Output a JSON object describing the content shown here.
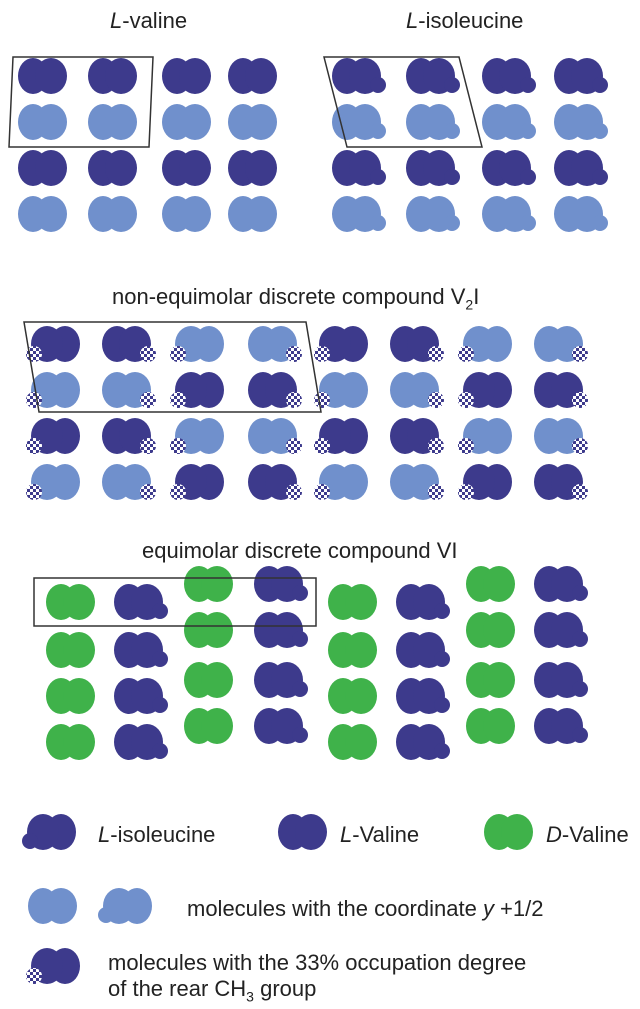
{
  "titles": {
    "valine_prefix": "L",
    "valine_rest": "-valine",
    "isoleucine_prefix": "L",
    "isoleucine_rest": "-isoleucine",
    "v2i_main": "non-equimolar discrete compound V",
    "v2i_sub": "2",
    "v2i_end": "I",
    "vi": "equimolar discrete compound VI"
  },
  "legend": {
    "isoleucine_prefix": "L",
    "isoleucine_rest": "-isoleucine",
    "lvaline_prefix": "L",
    "lvaline_rest": "-Valine",
    "dvaline_prefix": "D",
    "dvaline_rest": "-Valine",
    "y_text": "molecules with the coordinate ",
    "y_var": "y",
    "y_suffix": " +1/2",
    "occ_line1": "molecules with the 33% occupation degree",
    "occ_line2_pre": "of the rear CH",
    "occ_line2_sub": "3",
    "occ_line2_post": " group"
  },
  "colors": {
    "dark": "#3d3a8c",
    "light": "#7090cc",
    "green": "#3fb24a",
    "frame": "#333333"
  }
}
